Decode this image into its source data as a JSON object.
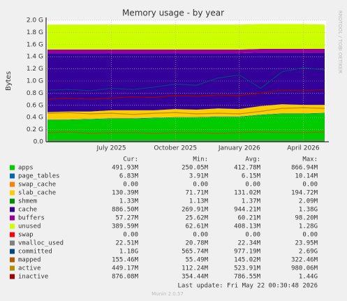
{
  "chart_data": {
    "type": "area",
    "title": "Memory usage - by year",
    "y_label": "Bytes",
    "side_text": "RRDTOOL / TOBI OETIKER",
    "footer": "Last update: Fri May 22 00:30:48 2026",
    "version": "Munin 2.0.57",
    "stat_headers": [
      "Cur:",
      "Min:",
      "Avg:",
      "Max:"
    ],
    "grid": true,
    "ylim": [
      0,
      2.0
    ],
    "yticks": [
      {
        "value": 0,
        "label": "0.0"
      },
      {
        "value": 0.2,
        "label": "0.2 G"
      },
      {
        "value": 0.4,
        "label": "0.4 G"
      },
      {
        "value": 0.6,
        "label": "0.6 G"
      },
      {
        "value": 0.8,
        "label": "0.8 G"
      },
      {
        "value": 1.0,
        "label": "1.0 G"
      },
      {
        "value": 1.2,
        "label": "1.2 G"
      },
      {
        "value": 1.4,
        "label": "1.4 G"
      },
      {
        "value": 1.6,
        "label": "1.6 G"
      },
      {
        "value": 1.8,
        "label": "1.8 G"
      },
      {
        "value": 2.0,
        "label": "2.0 G"
      }
    ],
    "x": [
      "2025-04",
      "2025-05",
      "2025-06",
      "2025-07",
      "2025-08",
      "2025-09",
      "2025-10",
      "2025-11",
      "2025-12",
      "2026-01",
      "2026-02",
      "2026-03",
      "2026-04",
      "2026-05"
    ],
    "xticks": [
      {
        "value": "2025-07",
        "label": "July 2025"
      },
      {
        "value": "2025-10",
        "label": "October 2025"
      },
      {
        "value": "2026-01",
        "label": "January 2026"
      },
      {
        "value": "2026-04",
        "label": "April 2026"
      }
    ],
    "series": [
      {
        "name": "apps",
        "color": "#00cc00",
        "draw": "area",
        "cur": "491.93M",
        "min": "250.05M",
        "avg": "412.78M",
        "max": "866.94M",
        "values": [
          0.36,
          0.36,
          0.37,
          0.38,
          0.38,
          0.39,
          0.4,
          0.4,
          0.41,
          0.41,
          0.44,
          0.46,
          0.46,
          0.47
        ]
      },
      {
        "name": "page_tables",
        "color": "#0066b3",
        "draw": "area",
        "cur": "6.83M",
        "min": "3.91M",
        "avg": "6.15M",
        "max": "10.14M",
        "values": [
          0.007,
          0.007,
          0.007,
          0.007,
          0.007,
          0.007,
          0.007,
          0.007,
          0.007,
          0.007,
          0.007,
          0.007,
          0.007,
          0.007
        ]
      },
      {
        "name": "swap_cache",
        "color": "#ff8000",
        "draw": "area",
        "cur": "0.00",
        "min": "0.00",
        "avg": "0.00",
        "max": "0.00",
        "values": [
          0,
          0,
          0,
          0,
          0,
          0,
          0,
          0,
          0,
          0,
          0,
          0,
          0,
          0
        ]
      },
      {
        "name": "slab_cache",
        "color": "#ffcc00",
        "draw": "area",
        "cur": "130.39M",
        "min": "71.71M",
        "avg": "131.02M",
        "max": "194.72M",
        "values": [
          0.12,
          0.13,
          0.12,
          0.13,
          0.13,
          0.12,
          0.13,
          0.12,
          0.13,
          0.12,
          0.14,
          0.15,
          0.14,
          0.13
        ]
      },
      {
        "name": "shmem",
        "color": "#008f00",
        "draw": "area",
        "cur": "1.33M",
        "min": "1.13M",
        "avg": "1.37M",
        "max": "2.09M",
        "values": [
          0.0013,
          0.0013,
          0.0013,
          0.0013,
          0.0013,
          0.0013,
          0.0013,
          0.0013,
          0.0013,
          0.0013,
          0.0013,
          0.0013,
          0.0013,
          0.0013
        ]
      },
      {
        "name": "cache",
        "color": "#330099",
        "draw": "area",
        "cur": "886.50M",
        "min": "269.91M",
        "avg": "944.21M",
        "max": "1.38G",
        "values": [
          0.97,
          0.96,
          0.96,
          0.94,
          0.94,
          0.94,
          0.92,
          0.93,
          0.91,
          0.92,
          0.88,
          0.85,
          0.86,
          0.86
        ]
      },
      {
        "name": "buffers",
        "color": "#990099",
        "draw": "area",
        "cur": "57.27M",
        "min": "25.62M",
        "avg": "60.21M",
        "max": "98.20M",
        "values": [
          0.06,
          0.06,
          0.06,
          0.06,
          0.06,
          0.06,
          0.06,
          0.06,
          0.06,
          0.06,
          0.06,
          0.06,
          0.06,
          0.06
        ]
      },
      {
        "name": "unused",
        "color": "#ccff00",
        "draw": "area",
        "cur": "389.59M",
        "min": "62.61M",
        "avg": "408.13M",
        "max": "1.28G",
        "values": [
          0.41,
          0.41,
          0.41,
          0.41,
          0.41,
          0.41,
          0.41,
          0.41,
          0.41,
          0.41,
          0.41,
          0.41,
          0.41,
          0.4
        ]
      },
      {
        "name": "swap",
        "color": "#ff0000",
        "draw": "area",
        "cur": "0.00",
        "min": "0.00",
        "avg": "0.00",
        "max": "0.00",
        "values": [
          0,
          0,
          0,
          0,
          0,
          0,
          0,
          0,
          0,
          0,
          0,
          0,
          0,
          0
        ]
      },
      {
        "name": "vmalloc_used",
        "color": "#808080",
        "draw": "line",
        "cur": "22.51M",
        "min": "20.78M",
        "avg": "22.34M",
        "max": "23.95M",
        "values": [
          0.022,
          0.022,
          0.022,
          0.022,
          0.022,
          0.022,
          0.022,
          0.022,
          0.022,
          0.022,
          0.022,
          0.022,
          0.022,
          0.022
        ]
      },
      {
        "name": "committed",
        "color": "#00487d",
        "draw": "line",
        "cur": "1.18G",
        "min": "565.74M",
        "avg": "977.19M",
        "max": "2.69G",
        "values": [
          0.85,
          0.86,
          0.84,
          0.88,
          0.86,
          0.9,
          0.95,
          0.93,
          1.05,
          1.1,
          0.88,
          1.15,
          1.22,
          1.18
        ]
      },
      {
        "name": "mapped",
        "color": "#b35a00",
        "draw": "line",
        "cur": "155.46M",
        "min": "55.49M",
        "avg": "145.02M",
        "max": "322.46M",
        "values": [
          0.15,
          0.16,
          0.14,
          0.15,
          0.15,
          0.14,
          0.15,
          0.15,
          0.14,
          0.15,
          0.16,
          0.15,
          0.15,
          0.16
        ]
      },
      {
        "name": "active",
        "color": "#b38f00",
        "draw": "line",
        "cur": "449.17M",
        "min": "112.24M",
        "avg": "523.91M",
        "max": "980.06M",
        "values": [
          0.47,
          0.48,
          0.46,
          0.47,
          0.45,
          0.47,
          0.48,
          0.46,
          0.47,
          0.46,
          0.5,
          0.55,
          0.56,
          0.55
        ]
      },
      {
        "name": "inactive",
        "color": "#a00000",
        "draw": "line",
        "cur": "876.08M",
        "min": "354.44M",
        "avg": "786.55M",
        "max": "1.44G",
        "values": [
          0.7,
          0.72,
          0.7,
          0.72,
          0.74,
          0.73,
          0.76,
          0.75,
          0.77,
          0.76,
          0.8,
          0.85,
          0.84,
          0.86
        ]
      }
    ]
  }
}
